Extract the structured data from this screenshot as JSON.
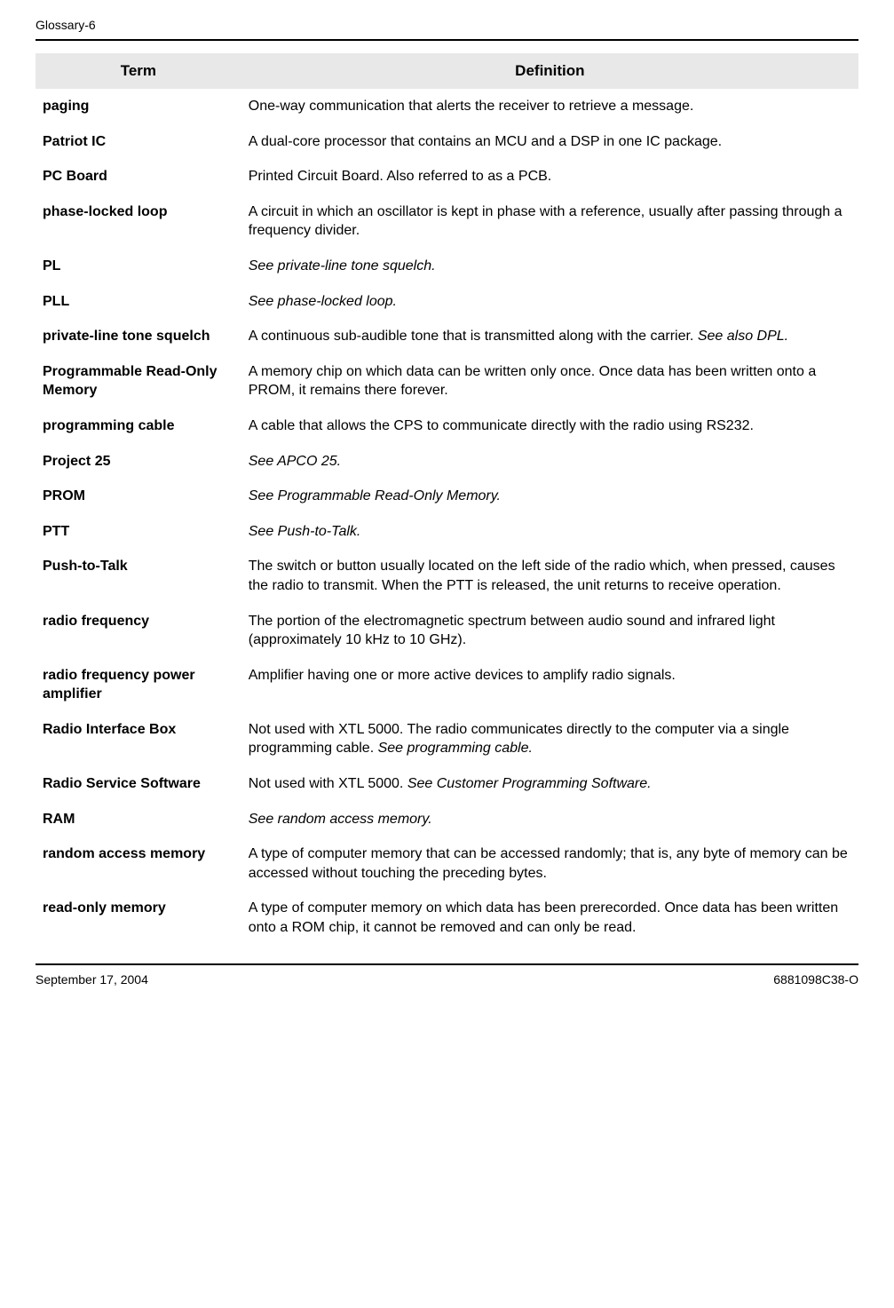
{
  "header": {
    "page_label": "Glossary-6"
  },
  "table": {
    "headers": {
      "term": "Term",
      "definition": "Definition"
    },
    "rows": [
      {
        "term": "paging",
        "definition": "One-way communication that alerts the receiver to retrieve a message."
      },
      {
        "term": "Patriot IC",
        "definition": "A dual-core processor that contains an MCU and a DSP in one IC package."
      },
      {
        "term": "PC Board",
        "definition": "Printed Circuit Board. Also referred to as a PCB."
      },
      {
        "term": "phase-locked loop",
        "definition": "A circuit in which an oscillator is kept in phase with a reference, usually after passing through a frequency divider."
      },
      {
        "term": "PL",
        "definition_italic": "See private-line tone squelch."
      },
      {
        "term": "PLL",
        "definition_italic": "See phase-locked loop."
      },
      {
        "term": "private-line tone squelch",
        "definition": "A continuous sub-audible tone that is transmitted along with the carrier. ",
        "definition_italic_suffix": "See also DPL."
      },
      {
        "term": "Programmable Read-Only Memory",
        "definition": "A memory chip on which data can be written only once. Once data has been written onto a PROM, it remains there forever."
      },
      {
        "term": "programming cable",
        "definition": "A cable that allows the CPS to communicate directly with the radio using RS232."
      },
      {
        "term": "Project 25",
        "definition_italic": "See APCO 25."
      },
      {
        "term": "PROM",
        "definition_italic": "See Programmable Read-Only Memory."
      },
      {
        "term": "PTT",
        "definition_italic": "See Push-to-Talk."
      },
      {
        "term": "Push-to-Talk",
        "definition": "The switch or button usually located on the left side of the radio which, when pressed, causes the radio to transmit. When the PTT is released, the unit returns to receive operation."
      },
      {
        "term": "radio frequency",
        "definition": "The portion of the electromagnetic spectrum between audio sound and infrared light (approximately 10 kHz to 10 GHz)."
      },
      {
        "term": "radio frequency power amplifier",
        "definition": "Amplifier having one or more active devices to amplify radio signals."
      },
      {
        "term": "Radio Interface Box",
        "definition": "Not used with XTL 5000. The radio communicates directly to the computer via a single programming cable. ",
        "definition_italic_suffix": "See programming cable."
      },
      {
        "term": "Radio Service Software",
        "definition": "Not used with XTL 5000. ",
        "definition_italic_suffix": "See Customer Programming Software."
      },
      {
        "term": "RAM",
        "definition_italic": "See random access memory."
      },
      {
        "term": "random access memory",
        "definition": "A type of computer memory that can be accessed randomly; that is, any byte of memory can be accessed without touching the preceding bytes."
      },
      {
        "term": "read-only memory",
        "definition": "A type of computer memory on which data has been prerecorded. Once data has been written onto a ROM chip, it cannot be removed and can only be read."
      }
    ]
  },
  "footer": {
    "date": "September 17, 2004",
    "docnum": "6881098C38-O"
  }
}
